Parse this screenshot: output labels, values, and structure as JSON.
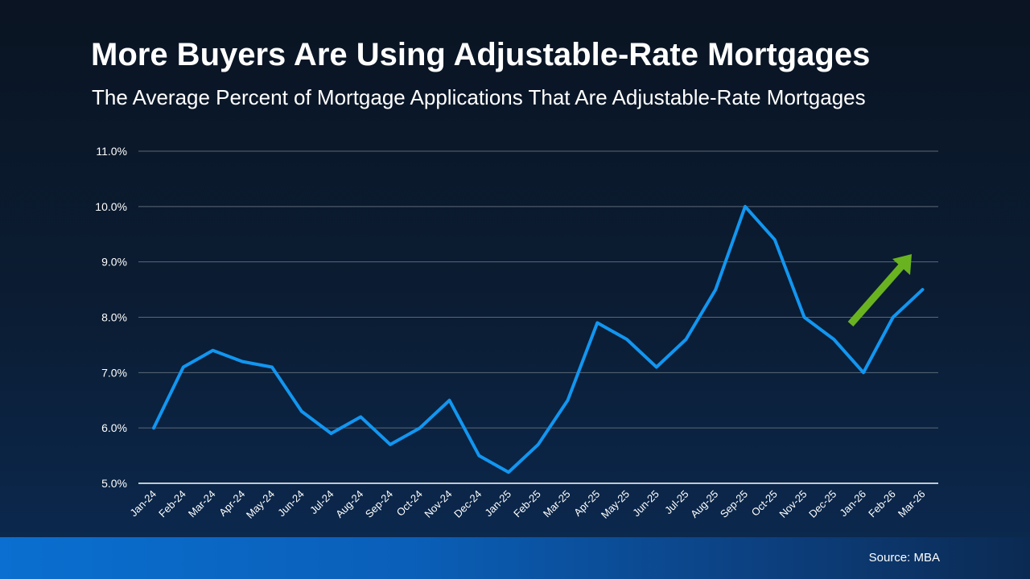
{
  "title": "More Buyers Are Using Adjustable-Rate Mortgages",
  "subtitle": "The Average Percent of Mortgage Applications That Are Adjustable-Rate Mortgages",
  "source": "Source: MBA",
  "colors": {
    "line": "#1296f0",
    "arrow": "#6ab320",
    "grid": "#5a6878",
    "axis": "#ffffff"
  },
  "chart_data": {
    "type": "line",
    "categories": [
      "Jan-24",
      "Feb-24",
      "Mar-24",
      "Apr-24",
      "May-24",
      "Jun-24",
      "Jul-24",
      "Aug-24",
      "Sep-24",
      "Oct-24",
      "Nov-24",
      "Dec-24",
      "Jan-25",
      "Feb-25",
      "Mar-25",
      "Apr-25",
      "May-25",
      "Jun-25",
      "Jul-25",
      "Aug-25",
      "Sep-25",
      "Oct-25",
      "Nov-25",
      "Dec-25",
      "Jan-26",
      "Feb-26",
      "Mar-26"
    ],
    "series": [
      {
        "values": [
          6.0,
          7.1,
          7.4,
          7.2,
          7.1,
          6.3,
          5.9,
          6.2,
          5.7,
          6.0,
          6.5,
          5.5,
          5.2,
          5.7,
          6.5,
          7.9,
          7.6,
          7.1,
          7.6,
          8.5,
          10.0,
          9.4,
          8.0,
          7.6,
          7.0,
          8.0,
          8.5
        ]
      }
    ],
    "yticks": [
      "5.0%",
      "6.0%",
      "7.0%",
      "8.0%",
      "9.0%",
      "10.0%",
      "11.0%"
    ],
    "ytick_values": [
      5,
      6,
      7,
      8,
      9,
      10,
      11
    ],
    "ylim": [
      5,
      11
    ],
    "grid": true,
    "annotation": "up-arrow"
  }
}
